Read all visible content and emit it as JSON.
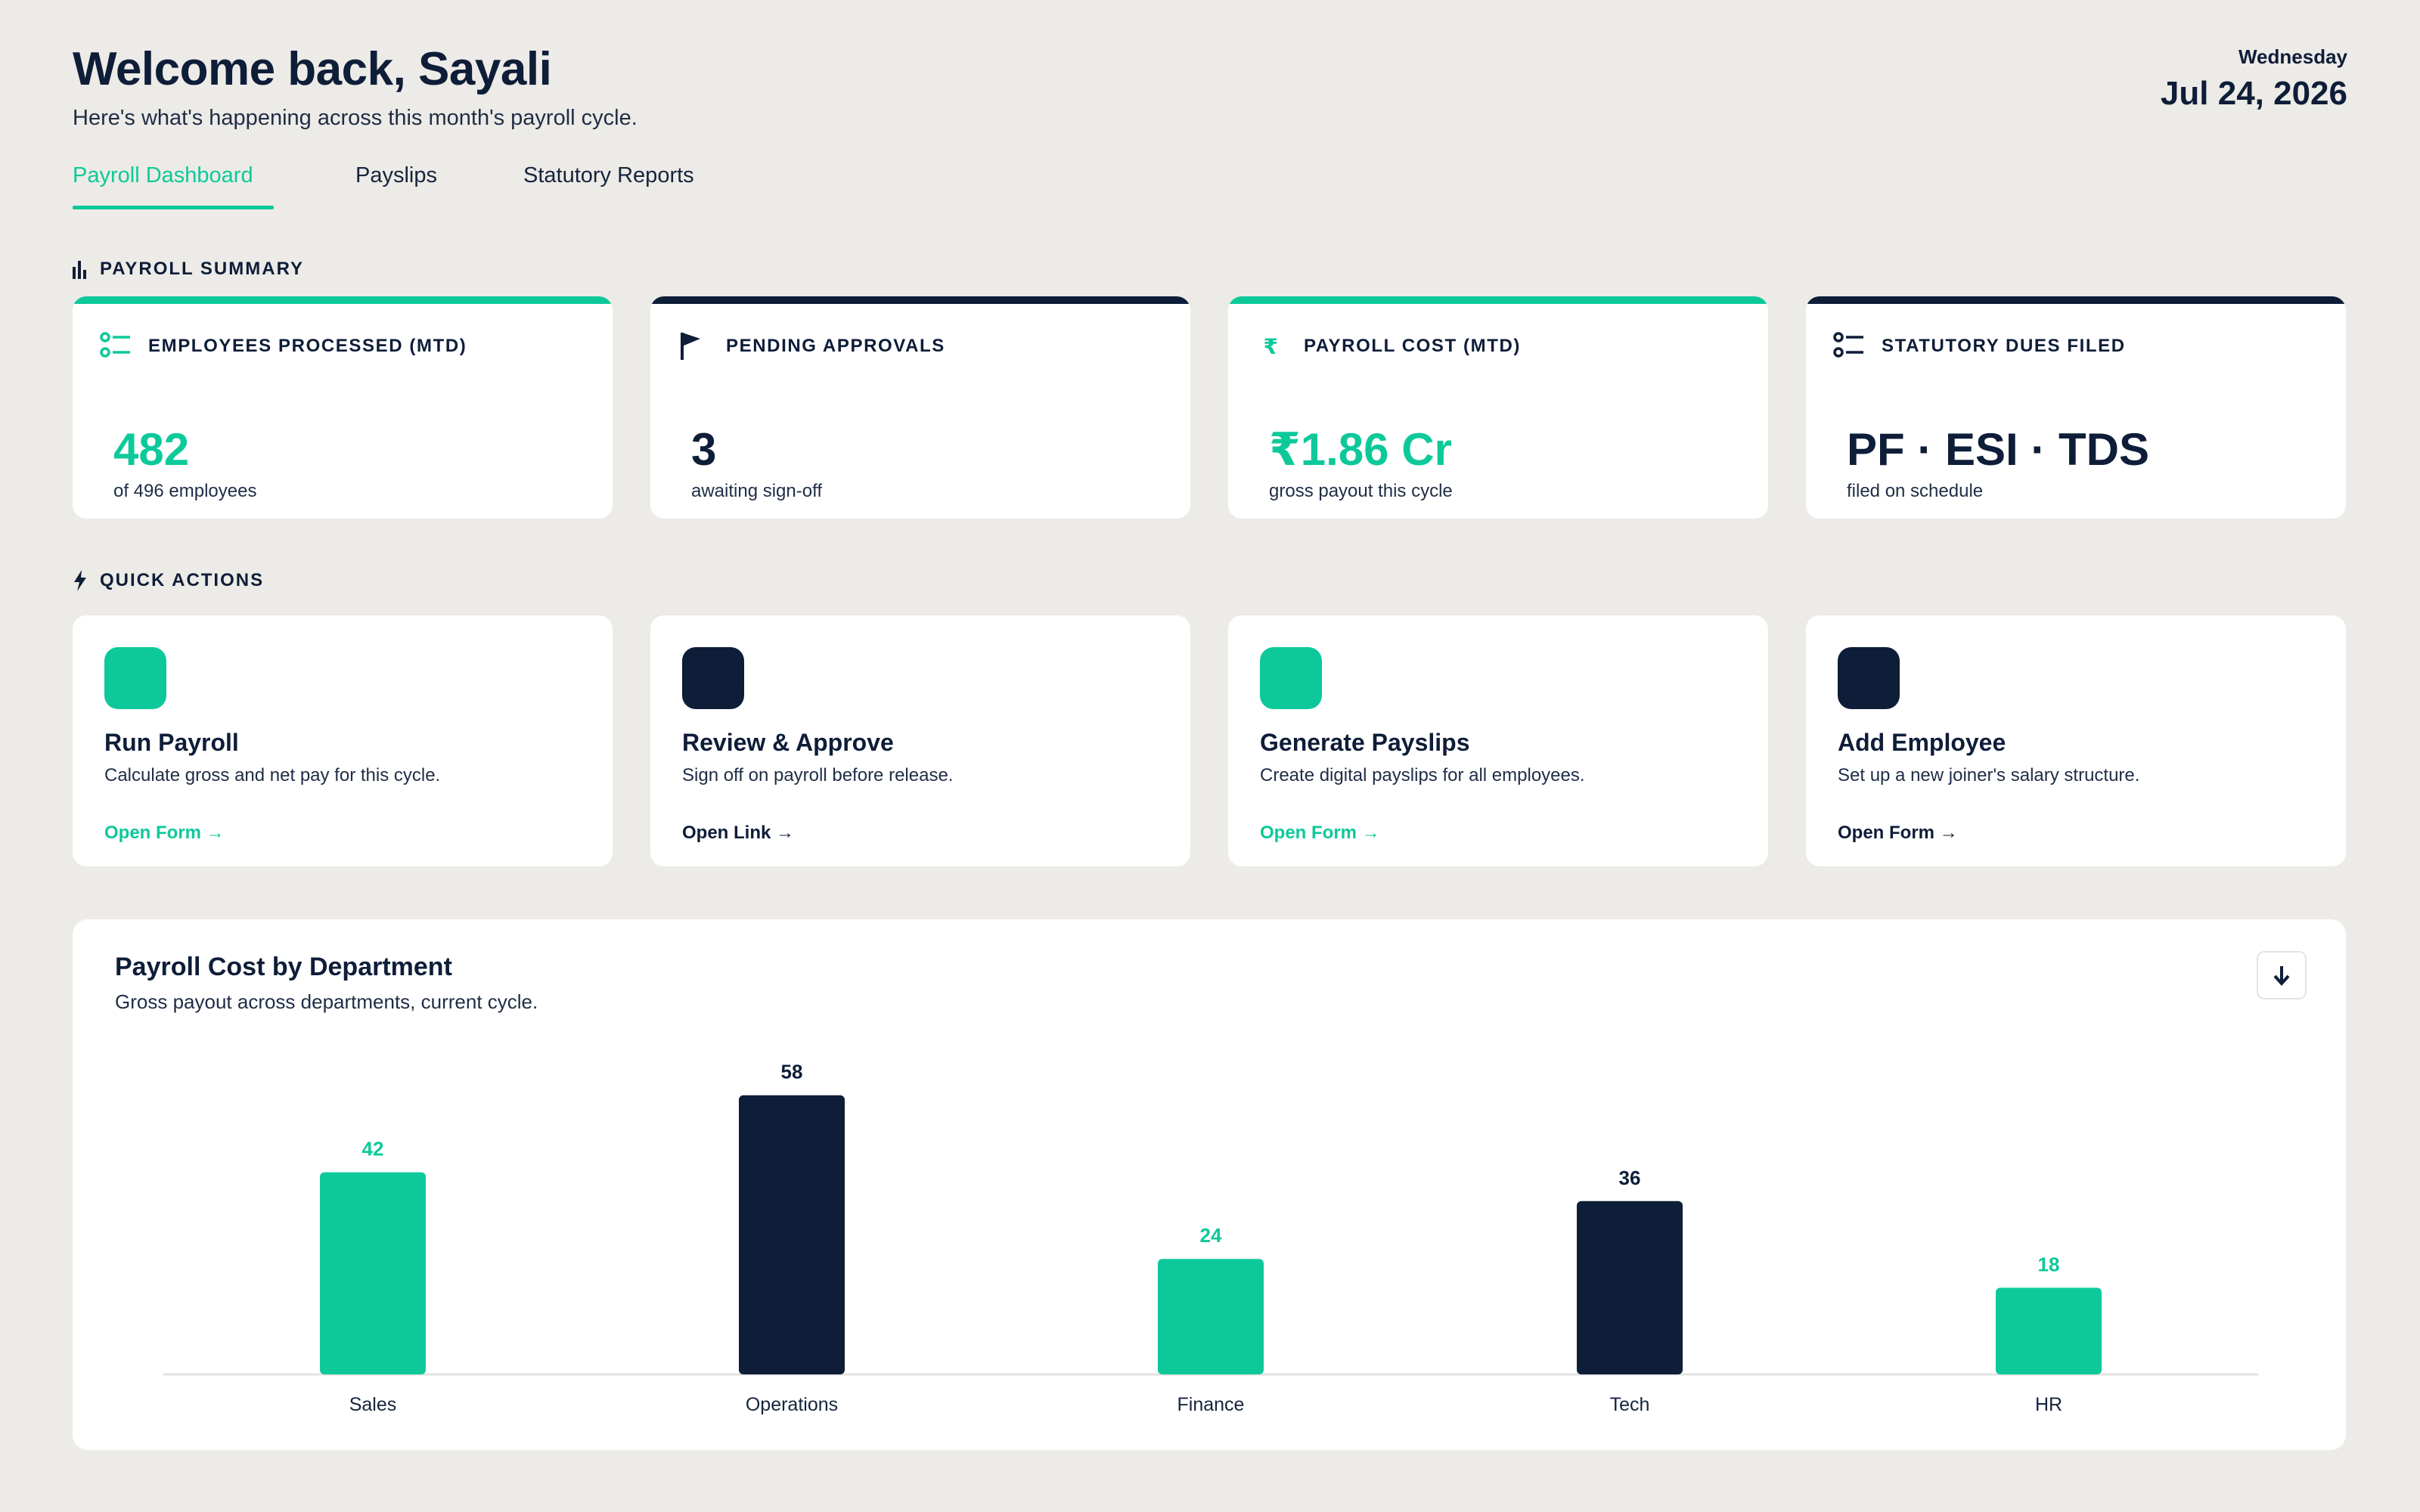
{
  "header": {
    "title": "Welcome back, Sayali",
    "subtitle": "Here's what's happening across this month's payroll cycle.",
    "day": "Wednesday",
    "date": "Jul 24, 2026"
  },
  "tabs": [
    {
      "label": "Payroll Dashboard",
      "active": true
    },
    {
      "label": "Payslips",
      "active": false
    },
    {
      "label": "Statutory Reports",
      "active": false
    }
  ],
  "summary": {
    "heading": "PAYROLL SUMMARY",
    "cards": [
      {
        "label": "EMPLOYEES PROCESSED (MTD)",
        "value": "482",
        "caption": "of 496 employees",
        "accent": "#0dc99a",
        "icon": "checklist-icon"
      },
      {
        "label": "PENDING APPROVALS",
        "value": "3",
        "caption": "awaiting sign-off",
        "accent": "#0e1d38",
        "icon": "flag-icon"
      },
      {
        "label": "PAYROLL COST (MTD)",
        "value": "₹1.86 Cr",
        "caption": "gross payout this cycle",
        "accent": "#0dc99a",
        "icon": "rupee-icon"
      },
      {
        "label": "STATUTORY DUES FILED",
        "value": "PF · ESI · TDS",
        "caption": "filed on schedule",
        "accent": "#0e1d38",
        "icon": "list-icon"
      }
    ]
  },
  "quick_actions": {
    "heading": "QUICK ACTIONS",
    "cards": [
      {
        "title": "Run Payroll",
        "description": "Calculate gross and net pay for this cycle.",
        "link": "Open Form →",
        "accent": "#0dc99a"
      },
      {
        "title": "Review & Approve",
        "description": "Sign off on payroll before release.",
        "link": "Open Link →",
        "accent": "#0e1d38"
      },
      {
        "title": "Generate Payslips",
        "description": "Create digital payslips for all employees.",
        "link": "Open Form →",
        "accent": "#0dc99a"
      },
      {
        "title": "Add Employee",
        "description": "Set up a new joiner's salary structure.",
        "link": "Open Form →",
        "accent": "#0e1d38"
      }
    ]
  },
  "chart_card": {
    "title": "Payroll Cost by Department",
    "subtitle": "Gross payout across departments, current cycle."
  },
  "chart_data": {
    "type": "bar",
    "title": "Payroll Cost by Department",
    "subtitle": "Gross payout across departments, current cycle.",
    "categories": [
      "Sales",
      "Operations",
      "Finance",
      "Tech",
      "HR"
    ],
    "values": [
      42,
      58,
      24,
      36,
      18
    ],
    "colors": [
      "#0dc99a",
      "#0e1d38",
      "#0dc99a",
      "#0e1d38",
      "#0dc99a"
    ],
    "label_colors": [
      "#0dc99a",
      "#0e1d38",
      "#0dc99a",
      "#0e1d38",
      "#0dc99a"
    ],
    "xlabel": "",
    "ylabel": "",
    "ylim": [
      0,
      60
    ],
    "grid": false,
    "legend": "none"
  },
  "colors": {
    "accent": "#0dc99a",
    "navy": "#0e1d38",
    "background": "#edebe7"
  }
}
